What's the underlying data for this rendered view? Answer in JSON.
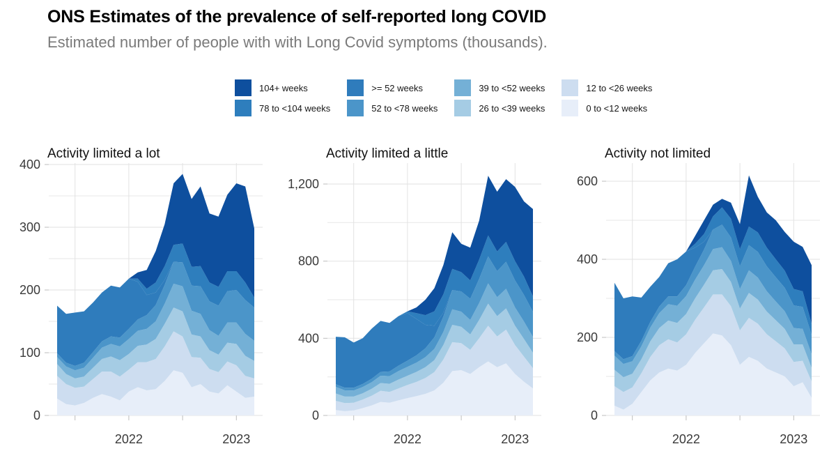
{
  "header": {
    "title": "ONS Estimates of the prevalence of self-reported long COVID",
    "subtitle": "Estimated number of people with with Long Covid symptoms (thousands)."
  },
  "legend": {
    "items": [
      {
        "label": "104+ weeks",
        "color": "#0e4f9e"
      },
      {
        "label": "78 to <104 weeks",
        "color": "#2e7ebd"
      },
      {
        "label": ">= 52 weeks",
        "color": "#2f7cbc"
      },
      {
        "label": "52 to <78 weeks",
        "color": "#4b95c9"
      },
      {
        "label": "39 to <52 weeks",
        "color": "#74b0d6"
      },
      {
        "label": "26 to <39 weeks",
        "color": "#a5cce4"
      },
      {
        "label": "12 to <26 weeks",
        "color": "#cdddf0"
      },
      {
        "label": "0 to <12 weeks",
        "color": "#e7eef9"
      }
    ]
  },
  "chart_data": [
    {
      "type": "area",
      "stacked": true,
      "title": "Activity limited a lot",
      "x": [
        "2021-05",
        "2021-06",
        "2021-07",
        "2021-08",
        "2021-09",
        "2021-10",
        "2021-11",
        "2021-12",
        "2022-01",
        "2022-02",
        "2022-03",
        "2022-04",
        "2022-05",
        "2022-06",
        "2022-07",
        "2022-08",
        "2022-09",
        "2022-10",
        "2022-11",
        "2022-12",
        "2023-01",
        "2023-02",
        "2023-03"
      ],
      "x_axis": {
        "tick_labels": [
          {
            "index": 8,
            "label": "2022"
          },
          {
            "index": 20,
            "label": "2023"
          }
        ],
        "grid_indices": [
          2,
          8,
          14,
          20
        ]
      },
      "y_axis": {
        "ylim": [
          0,
          430
        ],
        "major_ticks": [
          {
            "value": 0,
            "label": "0"
          },
          {
            "value": 100,
            "label": "100"
          },
          {
            "value": 200,
            "label": "200"
          },
          {
            "value": 300,
            "label": "300"
          },
          {
            "value": 400,
            "label": "400"
          }
        ],
        "minor_ticks": [
          50,
          150,
          250,
          350
        ]
      },
      "series": [
        {
          "name": "0 to <12 weeks",
          "values": [
            27,
            18,
            16,
            20,
            28,
            34,
            30,
            24,
            38,
            45,
            40,
            42,
            55,
            72,
            68,
            45,
            50,
            38,
            35,
            48,
            38,
            28,
            30
          ]
        },
        {
          "name": "12 to <26 weeks",
          "values": [
            36,
            32,
            28,
            26,
            30,
            36,
            40,
            38,
            35,
            40,
            45,
            48,
            55,
            62,
            58,
            48,
            42,
            36,
            34,
            38,
            42,
            35,
            29
          ]
        },
        {
          "name": "26 to <39 weeks",
          "values": [
            19,
            16,
            15,
            16,
            18,
            20,
            24,
            26,
            25,
            26,
            28,
            32,
            36,
            38,
            40,
            36,
            34,
            30,
            28,
            30,
            34,
            32,
            28
          ]
        },
        {
          "name": "39 to <52 weeks",
          "values": [
            11,
            12,
            13,
            14,
            16,
            18,
            20,
            22,
            24,
            24,
            25,
            28,
            32,
            38,
            40,
            38,
            36,
            32,
            30,
            32,
            34,
            35,
            32
          ]
        },
        {
          "name": "52 to <78 weeks",
          "values": [
            6,
            6,
            7,
            8,
            9,
            10,
            12,
            14,
            16,
            18,
            22,
            26,
            30,
            35,
            38,
            40,
            44,
            46,
            48,
            50,
            52,
            54,
            53
          ]
        },
        {
          "name": ">= 52 weeks",
          "values": [
            76,
            78,
            85,
            82,
            79,
            78,
            81,
            80,
            80,
            60,
            32,
            20,
            8,
            0,
            0,
            0,
            0,
            0,
            0,
            0,
            0,
            0,
            0
          ]
        },
        {
          "name": "78 to <104 weeks",
          "values": [
            0,
            0,
            0,
            0,
            0,
            0,
            0,
            0,
            0,
            5,
            10,
            16,
            22,
            27,
            30,
            30,
            32,
            30,
            30,
            32,
            30,
            28,
            16
          ]
        },
        {
          "name": "104+ weeks",
          "values": [
            0,
            0,
            0,
            0,
            0,
            0,
            0,
            0,
            0,
            10,
            30,
            50,
            67,
            98,
            111,
            108,
            127,
            110,
            112,
            122,
            140,
            153,
            110
          ]
        }
      ]
    },
    {
      "type": "area",
      "stacked": true,
      "title": "Activity limited a little",
      "x": [
        "2021-05",
        "2021-06",
        "2021-07",
        "2021-08",
        "2021-09",
        "2021-10",
        "2021-11",
        "2021-12",
        "2022-01",
        "2022-02",
        "2022-03",
        "2022-04",
        "2022-05",
        "2022-06",
        "2022-07",
        "2022-08",
        "2022-09",
        "2022-10",
        "2022-11",
        "2022-12",
        "2023-01",
        "2023-02",
        "2023-03"
      ],
      "x_axis": {
        "tick_labels": [
          {
            "index": 8,
            "label": "2022"
          },
          {
            "index": 20,
            "label": "2023"
          }
        ],
        "grid_indices": [
          2,
          8,
          14,
          20
        ]
      },
      "y_axis": {
        "ylim": [
          0,
          1300
        ],
        "major_ticks": [
          {
            "value": 0,
            "label": "0"
          },
          {
            "value": 400,
            "label": "400"
          },
          {
            "value": 800,
            "label": "800"
          },
          {
            "value": 1200,
            "label": "1,200"
          }
        ],
        "minor_ticks": [
          200,
          600,
          1000
        ]
      },
      "series": [
        {
          "name": "0 to <12 weeks",
          "values": [
            28,
            22,
            26,
            38,
            52,
            70,
            66,
            78,
            90,
            100,
            112,
            130,
            170,
            230,
            235,
            215,
            250,
            280,
            250,
            270,
            215,
            175,
            140
          ]
        },
        {
          "name": "12 to <26 weeks",
          "values": [
            48,
            42,
            40,
            44,
            50,
            58,
            56,
            62,
            68,
            74,
            82,
            95,
            120,
            150,
            140,
            125,
            150,
            185,
            160,
            175,
            150,
            130,
            105
          ]
        },
        {
          "name": "26 to <39 weeks",
          "values": [
            38,
            34,
            32,
            33,
            36,
            40,
            42,
            46,
            48,
            52,
            56,
            62,
            75,
            90,
            85,
            80,
            95,
            115,
            105,
            110,
            100,
            92,
            80
          ]
        },
        {
          "name": "39 to <52 weeks",
          "values": [
            34,
            32,
            31,
            32,
            34,
            38,
            40,
            44,
            46,
            48,
            52,
            58,
            68,
            80,
            78,
            75,
            88,
            105,
            98,
            102,
            95,
            90,
            82
          ]
        },
        {
          "name": "52 to <78 weeks",
          "values": [
            14,
            14,
            15,
            16,
            18,
            20,
            24,
            28,
            32,
            38,
            46,
            60,
            80,
            100,
            105,
            110,
            125,
            140,
            135,
            140,
            140,
            138,
            130
          ]
        },
        {
          "name": ">= 52 weeks",
          "values": [
            246,
            261,
            234,
            237,
            260,
            264,
            252,
            257,
            246,
            188,
            122,
            60,
            20,
            0,
            0,
            0,
            0,
            0,
            0,
            0,
            0,
            0,
            0
          ]
        },
        {
          "name": "78 to <104 weeks",
          "values": [
            0,
            0,
            0,
            0,
            0,
            0,
            0,
            0,
            10,
            30,
            50,
            75,
            95,
            110,
            100,
            95,
            100,
            108,
            102,
            103,
            100,
            95,
            80
          ]
        },
        {
          "name": "104+ weeks",
          "values": [
            0,
            0,
            0,
            0,
            0,
            0,
            0,
            0,
            0,
            30,
            80,
            120,
            152,
            190,
            147,
            170,
            202,
            310,
            310,
            325,
            385,
            390,
            453
          ]
        }
      ]
    },
    {
      "type": "area",
      "stacked": true,
      "title": "Activity not limited",
      "x": [
        "2021-05",
        "2021-06",
        "2021-07",
        "2021-08",
        "2021-09",
        "2021-10",
        "2021-11",
        "2021-12",
        "2022-01",
        "2022-02",
        "2022-03",
        "2022-04",
        "2022-05",
        "2022-06",
        "2022-07",
        "2022-08",
        "2022-09",
        "2022-10",
        "2022-11",
        "2022-12",
        "2023-01",
        "2023-02",
        "2023-03"
      ],
      "x_axis": {
        "tick_labels": [
          {
            "index": 8,
            "label": "2022"
          },
          {
            "index": 20,
            "label": "2023"
          }
        ],
        "grid_indices": [
          2,
          8,
          14,
          20
        ]
      },
      "y_axis": {
        "ylim": [
          0,
          650
        ],
        "major_ticks": [
          {
            "value": 0,
            "label": "0"
          },
          {
            "value": 200,
            "label": "200"
          },
          {
            "value": 400,
            "label": "400"
          },
          {
            "value": 600,
            "label": "600"
          }
        ],
        "minor_ticks": [
          100,
          300,
          500
        ]
      },
      "series": [
        {
          "name": "0 to <12 weeks",
          "values": [
            25,
            15,
            30,
            60,
            90,
            110,
            120,
            115,
            130,
            160,
            185,
            210,
            205,
            180,
            130,
            150,
            140,
            120,
            110,
            100,
            75,
            85,
            45
          ]
        },
        {
          "name": "12 to <26 weeks",
          "values": [
            50,
            45,
            42,
            48,
            60,
            70,
            75,
            72,
            78,
            85,
            92,
            100,
            105,
            100,
            88,
            100,
            95,
            88,
            80,
            72,
            62,
            55,
            42
          ]
        },
        {
          "name": "26 to <39 weeks",
          "values": [
            42,
            38,
            35,
            36,
            40,
            44,
            48,
            50,
            52,
            55,
            58,
            62,
            65,
            62,
            56,
            64,
            62,
            58,
            54,
            50,
            45,
            42,
            35
          ]
        },
        {
          "name": "39 to <52 weeks",
          "values": [
            36,
            34,
            32,
            33,
            35,
            38,
            42,
            44,
            46,
            48,
            50,
            54,
            56,
            54,
            50,
            58,
            56,
            52,
            48,
            45,
            42,
            40,
            35
          ]
        },
        {
          "name": "52 to <78 weeks",
          "values": [
            12,
            12,
            13,
            14,
            15,
            17,
            20,
            24,
            28,
            33,
            40,
            50,
            58,
            60,
            58,
            64,
            66,
            64,
            62,
            60,
            58,
            56,
            50
          ]
        },
        {
          "name": ">= 52 weeks",
          "values": [
            175,
            156,
            153,
            111,
            90,
            76,
            85,
            95,
            86,
            49,
            20,
            0,
            0,
            0,
            0,
            0,
            0,
            0,
            0,
            0,
            0,
            0,
            0
          ]
        },
        {
          "name": "78 to <104 weeks",
          "values": [
            0,
            0,
            0,
            0,
            0,
            0,
            0,
            0,
            0,
            10,
            20,
            34,
            44,
            48,
            44,
            48,
            50,
            48,
            46,
            44,
            42,
            40,
            28
          ]
        },
        {
          "name": "104+ weeks",
          "values": [
            0,
            0,
            0,
            0,
            0,
            0,
            0,
            0,
            0,
            20,
            35,
            30,
            22,
            41,
            64,
            131,
            91,
            90,
            100,
            99,
            121,
            114,
            150
          ]
        }
      ]
    }
  ]
}
